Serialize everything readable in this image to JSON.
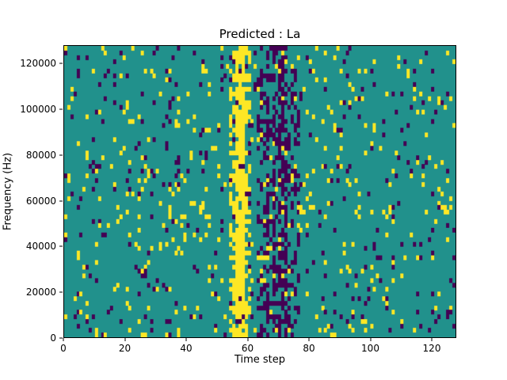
{
  "figure": {
    "background": "#ffffff"
  },
  "chart_data": {
    "type": "heatmap",
    "title": "Predicted : La",
    "xlabel": "Time step",
    "ylabel": "Frequency (Hz)",
    "x_range": [
      0,
      128
    ],
    "y_range": [
      0,
      128000
    ],
    "x_ticks": [
      0,
      20,
      40,
      60,
      80,
      100,
      120
    ],
    "y_ticks": [
      0,
      20000,
      40000,
      60000,
      80000,
      100000,
      120000
    ],
    "grid": {
      "cols": 128,
      "rows": 64
    },
    "colormap": {
      "name": "viridis-3level",
      "background": "#21918c",
      "positive": "#fde725",
      "negative": "#440154"
    },
    "legend": "none",
    "grid_lines": false,
    "pattern": {
      "description": "mostly teal field with sparse yellow and dark-purple cells; dense vertical yellow band near time step 55-60 and dense dark-purple band near time step 64-76",
      "seed": 7,
      "base_yellow_density": 0.05,
      "base_purple_density": 0.04,
      "yellow_band": {
        "col_start": 54,
        "col_end": 60,
        "density": 0.45,
        "core_cols": [
          56,
          57,
          58
        ],
        "core_density": 0.88
      },
      "purple_band": {
        "col_start": 63,
        "col_end": 76,
        "density": 0.28,
        "core_cols": [
          66,
          68,
          70,
          71,
          72
        ],
        "core_density": 0.58
      }
    }
  }
}
